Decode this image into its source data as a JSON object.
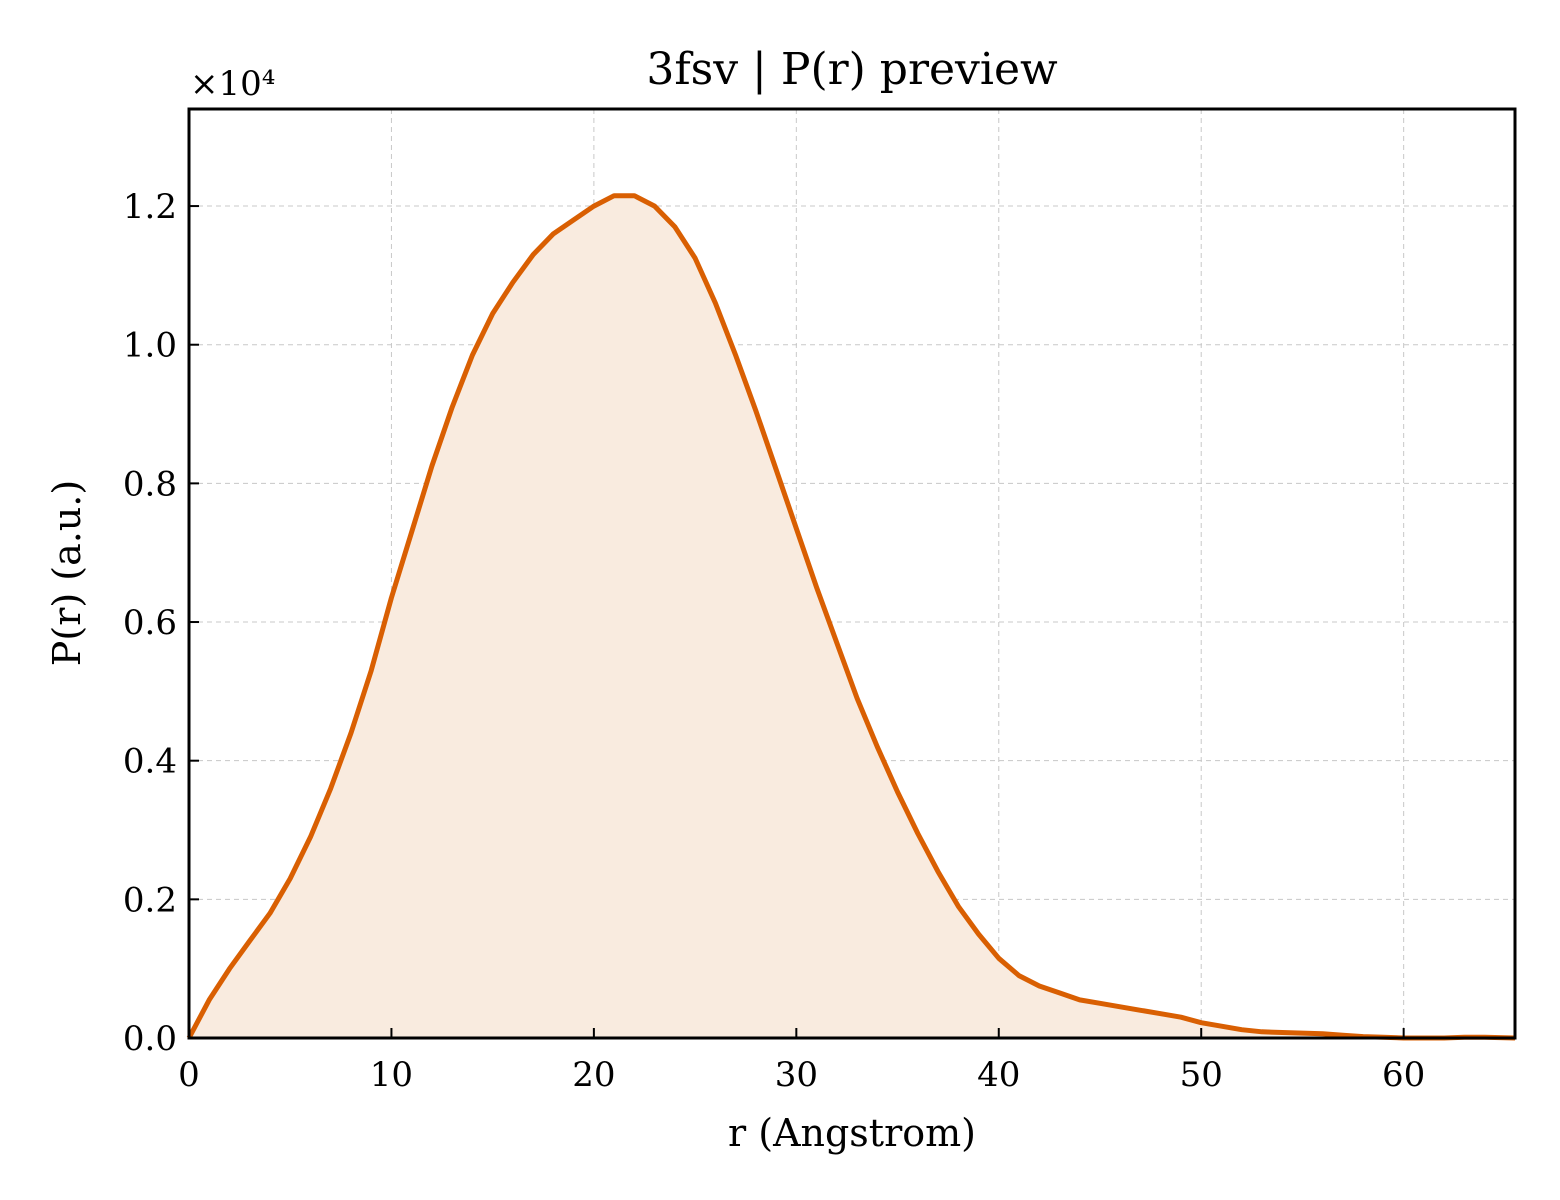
{
  "chart_data": {
    "type": "area",
    "title": "3fsv | P(r) preview",
    "xlabel": "r (Angstrom)",
    "ylabel": "P(r) (a.u.)",
    "y_multiplier": "×10⁴",
    "xlim": [
      0,
      65.5
    ],
    "ylim": [
      0,
      1.34
    ],
    "xticks": [
      0,
      10,
      20,
      30,
      40,
      50,
      60
    ],
    "yticks": [
      0.0,
      0.2,
      0.4,
      0.6,
      0.8,
      1.0,
      1.2
    ],
    "xtick_labels": [
      "0",
      "10",
      "20",
      "30",
      "40",
      "50",
      "60"
    ],
    "ytick_labels": [
      "0.0",
      "0.2",
      "0.4",
      "0.6",
      "0.8",
      "1.0",
      "1.2"
    ],
    "grid": true,
    "line_color": "#d95f02",
    "fill_color": "#f9ebdf",
    "series": [
      {
        "x": [
          0,
          1,
          2,
          3,
          4,
          5,
          6,
          7,
          8,
          9,
          10,
          11,
          12,
          13,
          14,
          15,
          16,
          17,
          18,
          19,
          20,
          21,
          22,
          23,
          24,
          25,
          26,
          27,
          28,
          29,
          30,
          31,
          32,
          33,
          34,
          35,
          36,
          37,
          38,
          39,
          40,
          41,
          42,
          43,
          44,
          45,
          46,
          47,
          48,
          49,
          50,
          51,
          52,
          53,
          54,
          55,
          56,
          57,
          58,
          59,
          60,
          61,
          62,
          63,
          64,
          65.5
        ],
        "y": [
          0.0,
          0.055,
          0.1,
          0.14,
          0.18,
          0.23,
          0.29,
          0.36,
          0.44,
          0.53,
          0.635,
          0.73,
          0.825,
          0.91,
          0.985,
          1.045,
          1.09,
          1.13,
          1.16,
          1.18,
          1.2,
          1.215,
          1.215,
          1.2,
          1.17,
          1.125,
          1.06,
          0.985,
          0.905,
          0.82,
          0.735,
          0.65,
          0.57,
          0.49,
          0.42,
          0.355,
          0.295,
          0.24,
          0.19,
          0.15,
          0.115,
          0.09,
          0.075,
          0.065,
          0.055,
          0.05,
          0.045,
          0.04,
          0.035,
          0.03,
          0.022,
          0.017,
          0.012,
          0.009,
          0.008,
          0.007,
          0.006,
          0.004,
          0.002,
          0.001,
          0.0,
          0.0,
          0.0,
          0.001,
          0.001,
          0.0
        ]
      }
    ]
  }
}
